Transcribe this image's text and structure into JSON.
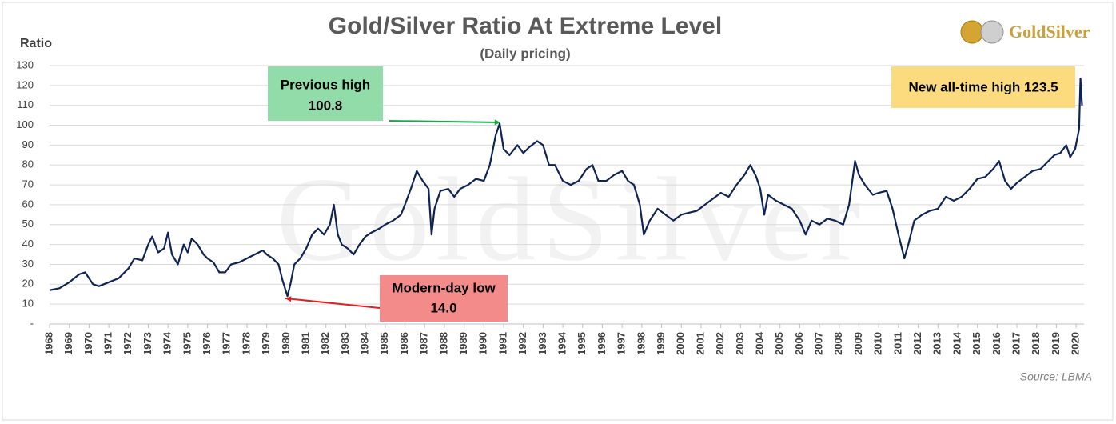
{
  "chart_data": {
    "type": "line",
    "title": "Gold/Silver Ratio At Extreme Level",
    "subtitle": "(Daily pricing)",
    "y_label": "Ratio",
    "source": "Source: LBMA",
    "logo": "GoldSilver",
    "watermark": "GoldSilver",
    "annotations": [
      {
        "text": "Previous high",
        "value_label": "100.8",
        "color": "#92dca9",
        "arrow": "#1aa84a"
      },
      {
        "text": "Modern-day low",
        "value_label": "14.0",
        "color": "#f48b8b",
        "arrow": "#e02020"
      },
      {
        "text": "New all-time high 123.5",
        "color": "#fbdb7e"
      }
    ],
    "x": [
      1968.0,
      1968.5,
      1969.0,
      1969.5,
      1969.8,
      1970.2,
      1970.5,
      1971.0,
      1971.5,
      1972.0,
      1972.3,
      1972.7,
      1973.0,
      1973.2,
      1973.5,
      1973.8,
      1974.0,
      1974.2,
      1974.5,
      1974.8,
      1975.0,
      1975.2,
      1975.5,
      1975.8,
      1976.0,
      1976.3,
      1976.6,
      1976.9,
      1977.2,
      1977.6,
      1978.0,
      1978.4,
      1978.8,
      1979.0,
      1979.3,
      1979.6,
      1979.8,
      1980.05,
      1980.2,
      1980.4,
      1980.7,
      1981.0,
      1981.3,
      1981.6,
      1981.9,
      1982.2,
      1982.4,
      1982.6,
      1982.8,
      1983.1,
      1983.4,
      1983.7,
      1984.0,
      1984.3,
      1984.7,
      1985.0,
      1985.4,
      1985.8,
      1986.0,
      1986.3,
      1986.6,
      1986.9,
      1987.2,
      1987.35,
      1987.5,
      1987.8,
      1988.2,
      1988.5,
      1988.8,
      1989.2,
      1989.6,
      1990.0,
      1990.3,
      1990.6,
      1990.8,
      1991.0,
      1991.3,
      1991.7,
      1992.0,
      1992.3,
      1992.7,
      1993.0,
      1993.3,
      1993.6,
      1994.0,
      1994.4,
      1994.8,
      1995.2,
      1995.5,
      1995.8,
      1996.2,
      1996.6,
      1997.0,
      1997.3,
      1997.6,
      1997.9,
      1998.1,
      1998.4,
      1998.8,
      1999.2,
      1999.6,
      2000.0,
      2000.4,
      2000.8,
      2001.2,
      2001.6,
      2002.0,
      2002.4,
      2002.8,
      2003.2,
      2003.5,
      2003.8,
      2004.0,
      2004.2,
      2004.4,
      2004.8,
      2005.2,
      2005.6,
      2006.0,
      2006.3,
      2006.6,
      2007.0,
      2007.4,
      2007.8,
      2008.2,
      2008.5,
      2008.8,
      2009.0,
      2009.3,
      2009.7,
      2010.0,
      2010.4,
      2010.7,
      2011.0,
      2011.3,
      2011.5,
      2011.8,
      2012.2,
      2012.6,
      2013.0,
      2013.4,
      2013.8,
      2014.2,
      2014.6,
      2015.0,
      2015.4,
      2015.8,
      2016.1,
      2016.4,
      2016.7,
      2017.0,
      2017.4,
      2017.8,
      2018.2,
      2018.6,
      2018.9,
      2019.2,
      2019.5,
      2019.7,
      2019.95,
      2020.15,
      2020.22,
      2020.3
    ],
    "series": [
      {
        "name": "Gold/Silver Ratio",
        "color": "#0f2454",
        "values": [
          17,
          18,
          21,
          25,
          26,
          20,
          19,
          21,
          23,
          28,
          33,
          32,
          40,
          44,
          36,
          38,
          46,
          35,
          30,
          40,
          36,
          43,
          40,
          35,
          33,
          31,
          26,
          26,
          30,
          31,
          33,
          35,
          37,
          35,
          33,
          30,
          22,
          14.0,
          20,
          30,
          33,
          38,
          45,
          48,
          45,
          50,
          60,
          45,
          40,
          38,
          35,
          40,
          44,
          46,
          48,
          50,
          52,
          55,
          60,
          68,
          77,
          72,
          68,
          45,
          58,
          67,
          68,
          64,
          68,
          70,
          73,
          72,
          80,
          95,
          100.8,
          88,
          85,
          90,
          86,
          89,
          92,
          90,
          80,
          80,
          72,
          70,
          72,
          78,
          80,
          72,
          72,
          75,
          77,
          72,
          70,
          60,
          45,
          52,
          58,
          55,
          52,
          55,
          56,
          57,
          60,
          63,
          66,
          64,
          70,
          75,
          80,
          74,
          68,
          55,
          65,
          62,
          60,
          58,
          52,
          45,
          52,
          50,
          53,
          52,
          50,
          60,
          82,
          75,
          70,
          65,
          66,
          67,
          58,
          45,
          33,
          40,
          52,
          55,
          57,
          58,
          64,
          62,
          64,
          68,
          73,
          74,
          78,
          82,
          72,
          68,
          71,
          74,
          77,
          78,
          82,
          85,
          86,
          90,
          84,
          88,
          98,
          123.5,
          110
        ]
      }
    ],
    "xlim": [
      1968,
      2020.4
    ],
    "xticks": [
      1968,
      1969,
      1970,
      1971,
      1972,
      1973,
      1974,
      1975,
      1976,
      1977,
      1978,
      1979,
      1980,
      1981,
      1982,
      1983,
      1984,
      1985,
      1986,
      1987,
      1988,
      1989,
      1990,
      1991,
      1992,
      1993,
      1994,
      1995,
      1996,
      1997,
      1998,
      1999,
      2000,
      2001,
      2002,
      2003,
      2004,
      2005,
      2006,
      2007,
      2008,
      2009,
      2010,
      2011,
      2012,
      2013,
      2014,
      2015,
      2016,
      2017,
      2018,
      2019,
      2020
    ],
    "ylim": [
      0,
      130
    ],
    "yticks": [
      {
        "value": 0,
        "label": "-"
      },
      10,
      20,
      30,
      40,
      50,
      60,
      70,
      80,
      90,
      100,
      110,
      120,
      130
    ],
    "grid": true
  }
}
